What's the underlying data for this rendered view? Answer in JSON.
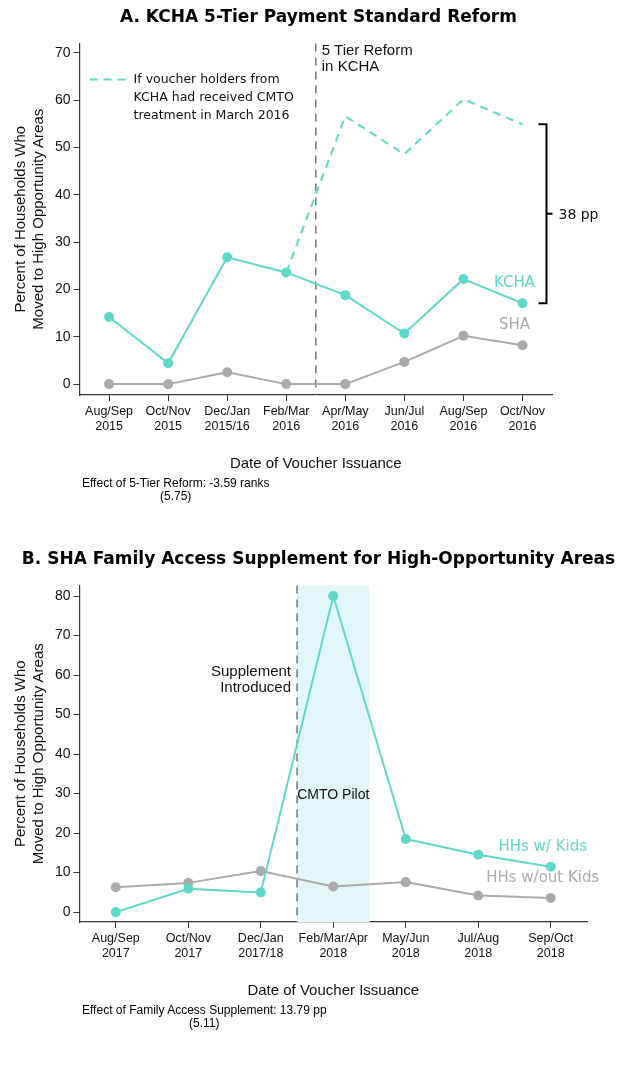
{
  "chart_data": [
    {
      "type": "line",
      "title": "A. KCHA 5-Tier Payment Standard Reform",
      "xlabel": "Date of Voucher Issuance",
      "ylabel": "Percent of Households Who Moved to High Opportunity Areas",
      "categories": [
        "Aug/Sep 2015",
        "Oct/Nov 2015",
        "Dec/Jan 2015/16",
        "Feb/Mar 2016",
        "Apr/May 2016",
        "Jun/Jul 2016",
        "Aug/Sep 2016",
        "Oct/Nov 2016"
      ],
      "ylim": [
        -2.3,
        72
      ],
      "yticks": [
        0,
        10,
        20,
        30,
        40,
        50,
        60,
        70
      ],
      "grid": false,
      "marker": "circle",
      "legend": "top left",
      "series": [
        {
          "name": "KCHA",
          "color": "#5fd8c8",
          "values": [
            14.2,
            4.4,
            26.8,
            23.6,
            18.8,
            10.7,
            22.2,
            17.1
          ]
        },
        {
          "name": "SHA",
          "color": "#aaaaaa",
          "values": [
            0,
            0,
            2.5,
            0,
            0,
            4.7,
            10.2,
            8.2
          ]
        },
        {
          "name": "If voucher holders from KCHA had received CMTO treatment in March 2016",
          "color": "#5fd8c8",
          "line_style": "dashed",
          "marker": "none",
          "values": [
            null,
            null,
            null,
            23.6,
            56.6,
            48.6,
            60.2,
            54.9
          ]
        }
      ],
      "annotations": [
        "5 Tier Reform in KCHA",
        "38 pp",
        "Effect of 5-Tier Reform: -3.59 ranks",
        "(5.75)"
      ]
    },
    {
      "type": "line",
      "title": "B. SHA Family Access Supplement for High-Opportunity Areas",
      "xlabel": "Date of Voucher Issuance",
      "ylabel": "Percent of Households Who Moved to High Opportunity Areas",
      "categories": [
        "Aug/Sep 2017",
        "Oct/Nov 2017",
        "Dec/Jan 2017/18",
        "Feb/Mar/Apr 2018",
        "May/Jun 2018",
        "Jul/Aug 2018",
        "Sep/Oct 2018"
      ],
      "ylim": [
        -2.5,
        82.7
      ],
      "yticks": [
        0,
        10,
        20,
        30,
        40,
        50,
        60,
        70,
        80
      ],
      "grid": false,
      "marker": "circle",
      "series": [
        {
          "name": "HHs w/ Kids",
          "color": "#5fd8c8",
          "values": [
            0,
            5.9,
            5.0,
            80,
            18.5,
            14.5,
            11.5
          ]
        },
        {
          "name": "HHs w/out Kids",
          "color": "#aaaaaa",
          "values": [
            6.3,
            7.4,
            10.4,
            6.5,
            7.6,
            4.2,
            3.6
          ]
        }
      ],
      "bands": [
        {
          "axis": "x",
          "from": "Feb/Mar/Apr 2018",
          "to": "Feb/Mar/Apr 2018",
          "label": "CMTO Pilot",
          "color": "#e2f6f7"
        }
      ],
      "annotations": [
        "Supplement Introduced",
        "Effect of Family Access Supplement: 13.79 pp",
        "(5.11)"
      ]
    }
  ]
}
